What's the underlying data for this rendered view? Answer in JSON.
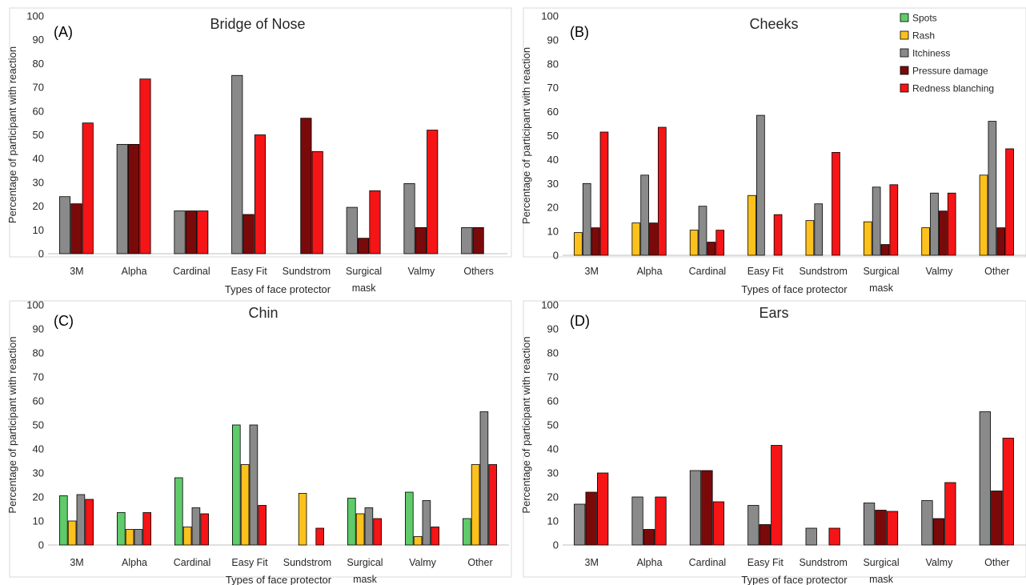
{
  "series_colors": {
    "Spots": "#5fcb6a",
    "Rash": "#fcc11d",
    "Itchiness": "#8a8a8a",
    "Pressure damage": "#7a0a0a",
    "Redness blanching": "#f51416"
  },
  "legend": [
    "Spots",
    "Rash",
    "Itchiness",
    "Pressure damage",
    "Redness blanching"
  ],
  "chart_data": [
    {
      "type": "bar",
      "panel": "(A)",
      "title": "Bridge of Nose",
      "ylabel": "Percentage of participant with reaction",
      "xlabel": "Types of face protector",
      "ylim": [
        0,
        100
      ],
      "yticks": [
        0,
        10,
        20,
        30,
        40,
        50,
        60,
        70,
        80,
        90,
        100
      ],
      "categories": [
        "3M",
        "Alpha",
        "Cardinal",
        "Easy Fit",
        "Sundstrom",
        "Surgical mask",
        "Valmy",
        "Others"
      ],
      "series": [
        {
          "name": "Itchiness",
          "values": [
            24,
            46,
            18,
            75,
            0,
            19.5,
            29.5,
            11
          ]
        },
        {
          "name": "Pressure damage",
          "values": [
            21,
            46,
            18,
            16.5,
            57,
            6.5,
            11,
            11
          ]
        },
        {
          "name": "Redness blanching",
          "values": [
            55,
            73.5,
            18,
            50,
            43,
            26.5,
            52,
            null
          ]
        }
      ]
    },
    {
      "type": "bar",
      "panel": "(B)",
      "title": "Cheeks",
      "ylabel": "Percentage of participant with reaction",
      "xlabel": "Types of face protector",
      "ylim": [
        0,
        100
      ],
      "yticks": [
        0,
        10,
        20,
        30,
        40,
        50,
        60,
        70,
        80,
        90,
        100
      ],
      "categories": [
        "3M",
        "Alpha",
        "Cardinal",
        "Easy Fit",
        "Sundstrom",
        "Surgical mask",
        "Valmy",
        "Other"
      ],
      "series": [
        {
          "name": "Rash",
          "values": [
            9.5,
            13.5,
            10.5,
            25,
            14.5,
            14,
            11.5,
            33.5
          ]
        },
        {
          "name": "Itchiness",
          "values": [
            30,
            33.5,
            20.5,
            58.5,
            21.5,
            28.5,
            26,
            56
          ]
        },
        {
          "name": "Pressure damage",
          "values": [
            11.5,
            13.5,
            5.5,
            0,
            0,
            4.5,
            18.5,
            11.5
          ]
        },
        {
          "name": "Redness blanching",
          "values": [
            51.5,
            53.5,
            10.5,
            17,
            43,
            29.5,
            26,
            44.5
          ]
        }
      ]
    },
    {
      "type": "bar",
      "panel": "(C)",
      "title": "Chin",
      "ylabel": "Percentage of participant with reaction",
      "xlabel": "Types of face protector",
      "ylim": [
        0,
        100
      ],
      "yticks": [
        0,
        10,
        20,
        30,
        40,
        50,
        60,
        70,
        80,
        90,
        100
      ],
      "categories": [
        "3M",
        "Alpha",
        "Cardinal",
        "Easy Fit",
        "Sundstrom",
        "Surgical mask",
        "Valmy",
        "Other"
      ],
      "series": [
        {
          "name": "Spots",
          "values": [
            20.5,
            13.5,
            28,
            50,
            0,
            19.5,
            22,
            11
          ]
        },
        {
          "name": "Rash",
          "values": [
            10,
            6.5,
            7.5,
            33.5,
            21.5,
            13,
            3.5,
            33.5
          ]
        },
        {
          "name": "Itchiness",
          "values": [
            21,
            6.5,
            15.5,
            50,
            0,
            15.5,
            18.5,
            55.5
          ]
        },
        {
          "name": "Redness blanching",
          "values": [
            19,
            13.5,
            13,
            16.5,
            7,
            11,
            7.5,
            33.5
          ]
        }
      ]
    },
    {
      "type": "bar",
      "panel": "(D)",
      "title": "Ears",
      "ylabel": "Percentage of participant with reaction",
      "xlabel": "Types of face protector",
      "ylim": [
        0,
        100
      ],
      "yticks": [
        0,
        10,
        20,
        30,
        40,
        50,
        60,
        70,
        80,
        90,
        100
      ],
      "categories": [
        "3M",
        "Alpha",
        "Cardinal",
        "Easy Fit",
        "Sundstrom",
        "Surgical mask",
        "Valmy",
        "Other"
      ],
      "series": [
        {
          "name": "Itchiness",
          "values": [
            17,
            20,
            31,
            16.5,
            7,
            17.5,
            18.5,
            55.5
          ]
        },
        {
          "name": "Pressure damage",
          "values": [
            22,
            6.5,
            31,
            8.5,
            0,
            14.5,
            11,
            22.5
          ]
        },
        {
          "name": "Redness blanching",
          "values": [
            30,
            20,
            18,
            41.5,
            7,
            14,
            26,
            44.5
          ]
        }
      ]
    }
  ]
}
